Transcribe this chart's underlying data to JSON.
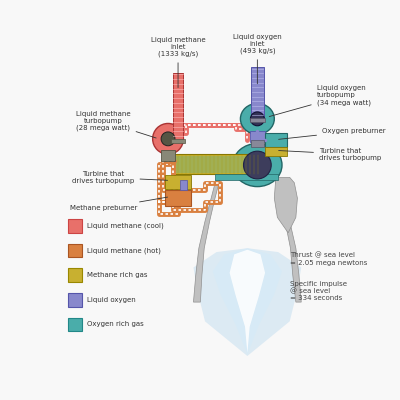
{
  "bg_color": "#f8f8f8",
  "legend_items": [
    {
      "label": "Liquid methane (cool)",
      "color": "#e8706a",
      "ec": "#cc4444"
    },
    {
      "label": "Liquid methane (hot)",
      "color": "#d98040",
      "ec": "#aa5522"
    },
    {
      "label": "Methane rich gas",
      "color": "#c8b030",
      "ec": "#998800"
    },
    {
      "label": "Liquid oxygen",
      "color": "#8888cc",
      "ec": "#5555aa"
    },
    {
      "label": "Oxygen rich gas",
      "color": "#4aadaa",
      "ec": "#228888"
    }
  ],
  "thrust_text": "Thrust @ sea level\n= 2.05 mega newtons",
  "impulse_text": "Specific impulse\n@ sea level\n= 334 seconds",
  "font_size": 5.0,
  "label_font_size": 5.2
}
